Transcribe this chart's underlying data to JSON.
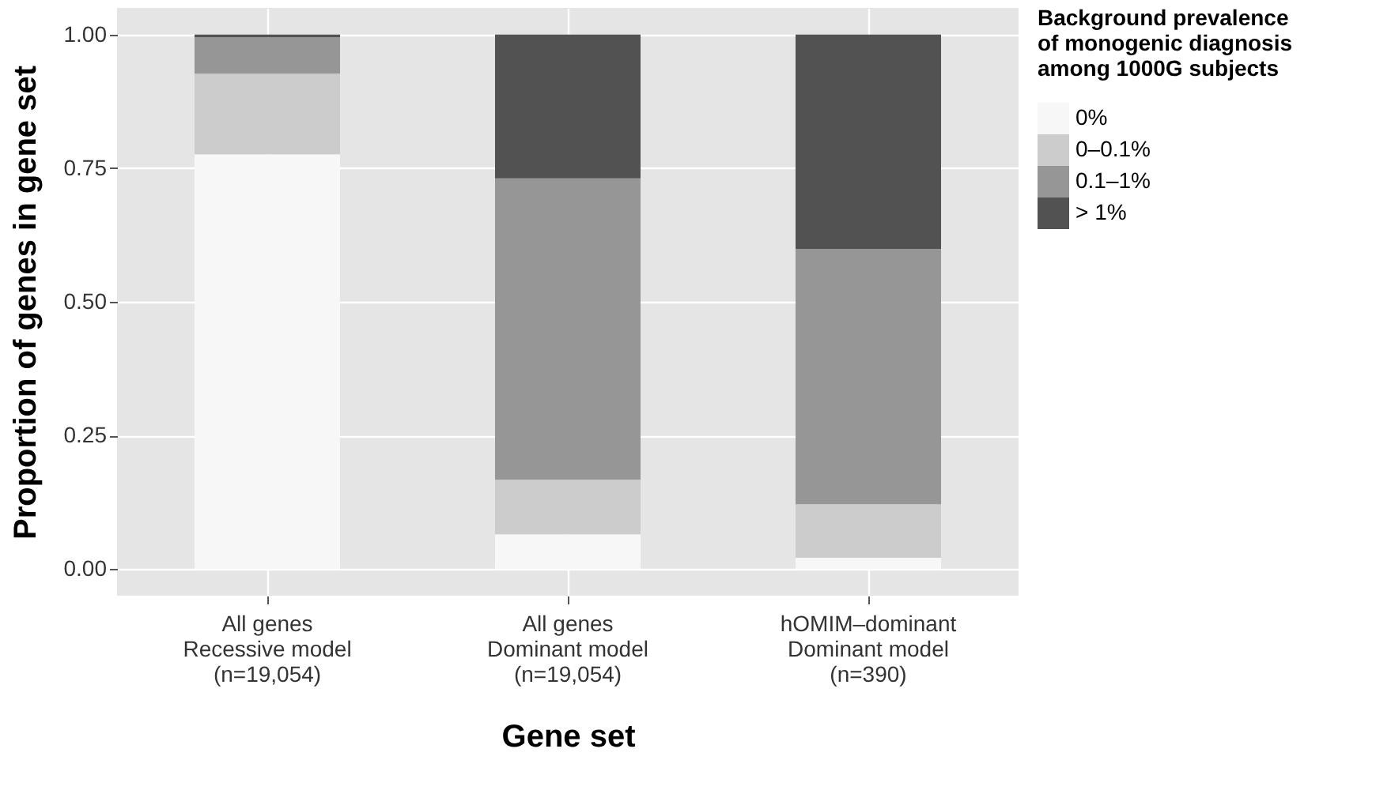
{
  "chart_data": {
    "type": "bar",
    "stacked": true,
    "xlabel": "Gene set",
    "ylabel": "Proportion of genes in gene set",
    "legend_title": "Background prevalence\nof monogenic diagnosis\namong 1000G subjects",
    "categories": [
      "All genes\nRecessive model\n(n=19,054)",
      "All genes\nDominant model\n(n=19,054)",
      "hOMIM–dominant\nDominant model\n(n=390)"
    ],
    "series": [
      {
        "name": "0%",
        "color": "#f7f7f7",
        "values": [
          0.776,
          0.065,
          0.021
        ]
      },
      {
        "name": "0–0.1%",
        "color": "#cccccc",
        "values": [
          0.151,
          0.102,
          0.1
        ]
      },
      {
        "name": "0.1–1%",
        "color": "#969696",
        "values": [
          0.068,
          0.564,
          0.478
        ]
      },
      {
        "name": "> 1%",
        "color": "#525252",
        "values": [
          0.005,
          0.269,
          0.401
        ]
      }
    ],
    "ylim": [
      -0.05,
      1.05
    ],
    "yticks": [
      {
        "value": 0,
        "label": "0.00"
      },
      {
        "value": 0.25,
        "label": "0.25"
      },
      {
        "value": 0.5,
        "label": "0.50"
      },
      {
        "value": 0.75,
        "label": "0.75"
      },
      {
        "value": 1,
        "label": "1.00"
      }
    ],
    "grid": true,
    "legend": "right"
  }
}
